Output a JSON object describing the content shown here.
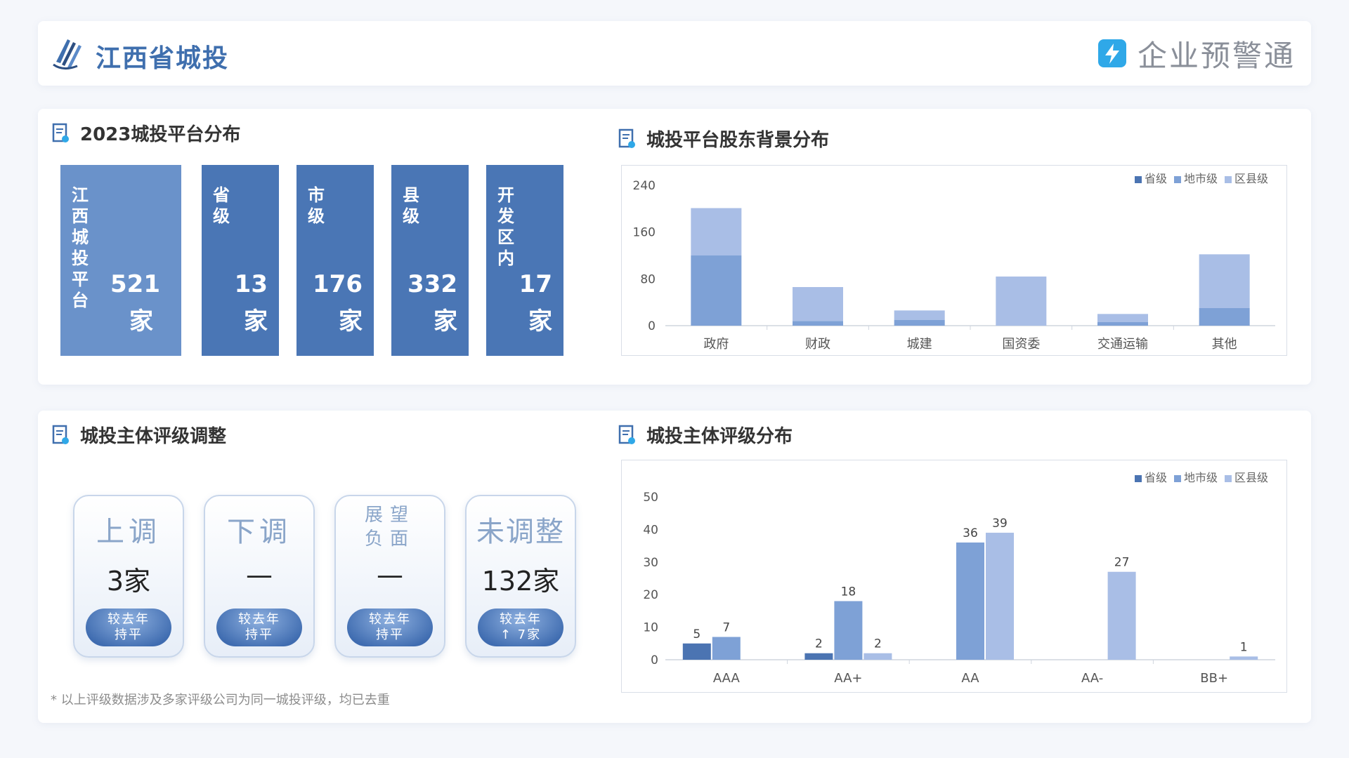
{
  "header": {
    "title": "江西省城投",
    "brand": "企业预警通"
  },
  "platform": {
    "title": "2023城投平台分布",
    "blocks": [
      {
        "label": "江西城投平台",
        "value": "521",
        "unit": "家"
      },
      {
        "label": "省级",
        "value": "13",
        "unit": "家"
      },
      {
        "label": "市级",
        "value": "176",
        "unit": "家"
      },
      {
        "label": "县级",
        "value": "332",
        "unit": "家"
      },
      {
        "label": "开发区内",
        "value": "17",
        "unit": "家"
      }
    ]
  },
  "shareholder": {
    "title": "城投平台股东背景分布"
  },
  "rating_adjust": {
    "title": "城投主体评级调整",
    "cards": [
      {
        "title": "上调",
        "value": "3家",
        "note1": "较去年",
        "note2": "持平"
      },
      {
        "title": "下调",
        "value": "—",
        "note1": "较去年",
        "note2": "持平"
      },
      {
        "title1": "展望",
        "title2": "负面",
        "value": "—",
        "note1": "较去年",
        "note2": "持平"
      },
      {
        "title": "未调整",
        "value": "132家",
        "note1": "较去年",
        "note2": "↑ 7家"
      }
    ],
    "footnote": "* 以上评级数据涉及多家评级公司为同一城投评级，均已去重"
  },
  "rating_dist": {
    "title": "城投主体评级分布"
  },
  "colors": {
    "prov": "#4b74b2",
    "city": "#7ea1d6",
    "county": "#a9bee6"
  },
  "chart_data": [
    {
      "type": "bar",
      "stacked": true,
      "title": "城投平台股东背景分布",
      "categories": [
        "政府",
        "财政",
        "城建",
        "国资委",
        "交通运输",
        "其他"
      ],
      "series": [
        {
          "name": "省级",
          "values": [
            0,
            0,
            0,
            0,
            0,
            0
          ]
        },
        {
          "name": "地市级",
          "values": [
            120,
            8,
            10,
            0,
            6,
            30
          ]
        },
        {
          "name": "区县级",
          "values": [
            81,
            58,
            16,
            84,
            14,
            92
          ]
        }
      ],
      "yticks": [
        0,
        80,
        160,
        240
      ],
      "ylim": [
        0,
        240
      ],
      "legend": "top-right"
    },
    {
      "type": "bar",
      "stacked": false,
      "title": "城投主体评级分布",
      "categories": [
        "AAA",
        "AA+",
        "AA",
        "AA-",
        "BB+"
      ],
      "series": [
        {
          "name": "省级",
          "values": [
            5,
            2,
            0,
            0,
            0
          ]
        },
        {
          "name": "地市级",
          "values": [
            7,
            18,
            36,
            0,
            0
          ]
        },
        {
          "name": "区县级",
          "values": [
            0,
            2,
            39,
            27,
            1
          ]
        }
      ],
      "yticks": [
        0,
        10,
        20,
        30,
        40,
        50
      ],
      "ylim": [
        0,
        50
      ],
      "legend": "top-right"
    }
  ]
}
